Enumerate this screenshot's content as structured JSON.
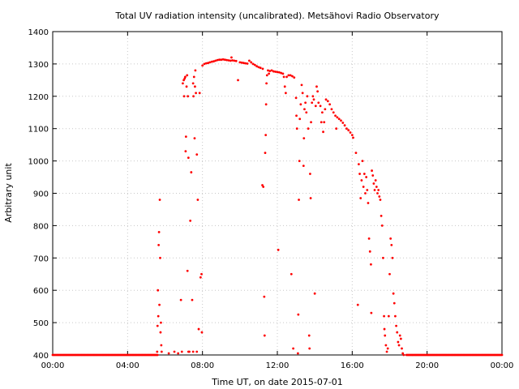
{
  "chart_data": {
    "type": "scatter",
    "title": "Total UV radiation intensity (uncalibrated). Metsähovi Radio Observatory",
    "xlabel": "Time UT, on date 2015-07-01",
    "ylabel": "Arbitrary unit",
    "xlim": [
      0,
      24
    ],
    "ylim": [
      400,
      1400
    ],
    "grid": true,
    "x_ticks": [
      0,
      4,
      8,
      12,
      16,
      20,
      24
    ],
    "x_tick_labels": [
      "00:00",
      "04:00",
      "08:00",
      "12:00",
      "16:00",
      "20:00",
      "00:00"
    ],
    "y_ticks": [
      400,
      500,
      600,
      700,
      800,
      900,
      1000,
      1100,
      1200,
      1300,
      1400
    ],
    "y_tick_labels": [
      "400",
      "500",
      "600",
      "700",
      "800",
      "900",
      "1000",
      "1100",
      "1200",
      "1300",
      "1400"
    ],
    "series_color": "#ff0000",
    "baseline_points": {
      "value": 400,
      "ranges": [
        [
          0,
          5.6
        ],
        [
          18.9,
          24
        ]
      ],
      "step_hours": 0.05
    },
    "points": [
      [
        5.58,
        410
      ],
      [
        5.6,
        490
      ],
      [
        5.62,
        600
      ],
      [
        5.64,
        520
      ],
      [
        5.66,
        740
      ],
      [
        5.68,
        780
      ],
      [
        5.7,
        555
      ],
      [
        5.72,
        880
      ],
      [
        5.74,
        700
      ],
      [
        5.76,
        470
      ],
      [
        5.78,
        500
      ],
      [
        5.8,
        430
      ],
      [
        5.82,
        410
      ],
      [
        6.2,
        405
      ],
      [
        6.5,
        410
      ],
      [
        6.7,
        405
      ],
      [
        6.85,
        570
      ],
      [
        6.9,
        410
      ],
      [
        6.95,
        1240
      ],
      [
        7.0,
        1250
      ],
      [
        7.02,
        1200
      ],
      [
        7.05,
        1255
      ],
      [
        7.08,
        1260
      ],
      [
        7.1,
        1030
      ],
      [
        7.12,
        1075
      ],
      [
        7.15,
        1230
      ],
      [
        7.18,
        1265
      ],
      [
        7.2,
        660
      ],
      [
        7.22,
        1200
      ],
      [
        7.25,
        1010
      ],
      [
        7.3,
        410
      ],
      [
        7.35,
        815
      ],
      [
        7.4,
        965
      ],
      [
        7.45,
        570
      ],
      [
        7.5,
        1240
      ],
      [
        7.52,
        1200
      ],
      [
        7.55,
        1260
      ],
      [
        7.58,
        1070
      ],
      [
        7.6,
        1230
      ],
      [
        7.62,
        1280
      ],
      [
        7.65,
        1210
      ],
      [
        7.7,
        1020
      ],
      [
        7.75,
        880
      ],
      [
        7.8,
        480
      ],
      [
        7.85,
        1210
      ],
      [
        7.9,
        640
      ],
      [
        7.95,
        650
      ],
      [
        7.97,
        470
      ],
      [
        7.7,
        410
      ],
      [
        7.5,
        410
      ],
      [
        7.25,
        410
      ],
      [
        8.0,
        1295
      ],
      [
        8.1,
        1300
      ],
      [
        8.2,
        1302
      ],
      [
        8.3,
        1303
      ],
      [
        8.4,
        1305
      ],
      [
        8.5,
        1307
      ],
      [
        8.6,
        1308
      ],
      [
        8.7,
        1310
      ],
      [
        8.8,
        1312
      ],
      [
        8.9,
        1313
      ],
      [
        9.0,
        1313
      ],
      [
        9.1,
        1314
      ],
      [
        9.2,
        1313
      ],
      [
        9.3,
        1312
      ],
      [
        9.4,
        1311
      ],
      [
        9.5,
        1310
      ],
      [
        9.6,
        1311
      ],
      [
        9.7,
        1310
      ],
      [
        9.8,
        1309
      ],
      [
        9.9,
        1250
      ],
      [
        9.55,
        1320
      ],
      [
        10.0,
        1305
      ],
      [
        10.1,
        1304
      ],
      [
        10.2,
        1303
      ],
      [
        10.3,
        1302
      ],
      [
        10.4,
        1301
      ],
      [
        10.5,
        1310
      ],
      [
        10.6,
        1305
      ],
      [
        10.7,
        1300
      ],
      [
        10.8,
        1297
      ],
      [
        10.9,
        1293
      ],
      [
        11.0,
        1290
      ],
      [
        11.1,
        1288
      ],
      [
        11.2,
        925
      ],
      [
        11.22,
        1285
      ],
      [
        11.25,
        920
      ],
      [
        11.3,
        580
      ],
      [
        11.32,
        460
      ],
      [
        11.35,
        1025
      ],
      [
        11.38,
        1080
      ],
      [
        11.4,
        1175
      ],
      [
        11.42,
        1240
      ],
      [
        11.45,
        1265
      ],
      [
        11.5,
        1280
      ],
      [
        11.55,
        1270
      ],
      [
        11.6,
        1278
      ],
      [
        11.7,
        1280
      ],
      [
        11.8,
        1277
      ],
      [
        11.9,
        1276
      ],
      [
        12.0,
        1275
      ],
      [
        12.05,
        725
      ],
      [
        12.1,
        1274
      ],
      [
        12.2,
        1272
      ],
      [
        12.3,
        1270
      ],
      [
        12.35,
        1260
      ],
      [
        12.4,
        1230
      ],
      [
        12.45,
        1210
      ],
      [
        12.5,
        1260
      ],
      [
        12.6,
        1265
      ],
      [
        12.7,
        1265
      ],
      [
        12.75,
        650
      ],
      [
        12.8,
        1262
      ],
      [
        12.85,
        420
      ],
      [
        12.9,
        1258
      ],
      [
        13.0,
        1195
      ],
      [
        13.02,
        1140
      ],
      [
        13.05,
        1100
      ],
      [
        13.1,
        405
      ],
      [
        13.12,
        525
      ],
      [
        13.15,
        880
      ],
      [
        13.18,
        1000
      ],
      [
        13.2,
        1130
      ],
      [
        13.25,
        1175
      ],
      [
        13.3,
        1235
      ],
      [
        13.35,
        1210
      ],
      [
        13.4,
        985
      ],
      [
        13.42,
        1070
      ],
      [
        13.45,
        1160
      ],
      [
        13.5,
        1180
      ],
      [
        13.55,
        1150
      ],
      [
        13.6,
        1200
      ],
      [
        13.65,
        1100
      ],
      [
        13.7,
        460
      ],
      [
        13.72,
        420
      ],
      [
        13.75,
        960
      ],
      [
        13.78,
        885
      ],
      [
        13.8,
        1120
      ],
      [
        13.85,
        1180
      ],
      [
        13.9,
        1200
      ],
      [
        13.95,
        1190
      ],
      [
        14.0,
        590
      ],
      [
        14.05,
        1170
      ],
      [
        14.1,
        1230
      ],
      [
        14.15,
        1215
      ],
      [
        14.2,
        1180
      ],
      [
        14.3,
        1170
      ],
      [
        14.35,
        1120
      ],
      [
        14.4,
        1150
      ],
      [
        14.45,
        1090
      ],
      [
        14.5,
        1120
      ],
      [
        14.55,
        1160
      ],
      [
        14.6,
        1190
      ],
      [
        14.7,
        1185
      ],
      [
        14.8,
        1175
      ],
      [
        14.9,
        1160
      ],
      [
        15.0,
        1150
      ],
      [
        15.1,
        1140
      ],
      [
        15.15,
        1100
      ],
      [
        15.2,
        1135
      ],
      [
        15.3,
        1130
      ],
      [
        15.4,
        1125
      ],
      [
        15.5,
        1118
      ],
      [
        15.6,
        1110
      ],
      [
        15.7,
        1100
      ],
      [
        15.8,
        1095
      ],
      [
        15.9,
        1088
      ],
      [
        16.0,
        1080
      ],
      [
        16.05,
        1072
      ],
      [
        16.2,
        1025
      ],
      [
        16.3,
        555
      ],
      [
        16.35,
        990
      ],
      [
        16.4,
        960
      ],
      [
        16.45,
        885
      ],
      [
        16.5,
        940
      ],
      [
        16.55,
        1000
      ],
      [
        16.6,
        920
      ],
      [
        16.65,
        960
      ],
      [
        16.7,
        900
      ],
      [
        16.75,
        950
      ],
      [
        16.8,
        910
      ],
      [
        16.85,
        870
      ],
      [
        16.9,
        760
      ],
      [
        16.95,
        720
      ],
      [
        17.0,
        680
      ],
      [
        17.02,
        530
      ],
      [
        17.05,
        970
      ],
      [
        17.1,
        955
      ],
      [
        17.15,
        930
      ],
      [
        17.2,
        910
      ],
      [
        17.25,
        940
      ],
      [
        17.3,
        920
      ],
      [
        17.35,
        900
      ],
      [
        17.4,
        910
      ],
      [
        17.45,
        890
      ],
      [
        17.5,
        880
      ],
      [
        17.55,
        830
      ],
      [
        17.6,
        800
      ],
      [
        17.65,
        700
      ],
      [
        17.7,
        520
      ],
      [
        17.72,
        480
      ],
      [
        17.75,
        460
      ],
      [
        17.8,
        430
      ],
      [
        17.85,
        410
      ],
      [
        17.9,
        420
      ],
      [
        17.95,
        520
      ],
      [
        18.0,
        650
      ],
      [
        18.05,
        760
      ],
      [
        18.1,
        740
      ],
      [
        18.15,
        700
      ],
      [
        18.2,
        590
      ],
      [
        18.25,
        560
      ],
      [
        18.3,
        520
      ],
      [
        18.35,
        490
      ],
      [
        18.4,
        470
      ],
      [
        18.45,
        440
      ],
      [
        18.5,
        430
      ],
      [
        18.55,
        460
      ],
      [
        18.6,
        450
      ],
      [
        18.65,
        420
      ],
      [
        18.7,
        405
      ],
      [
        18.75,
        400
      ]
    ]
  }
}
